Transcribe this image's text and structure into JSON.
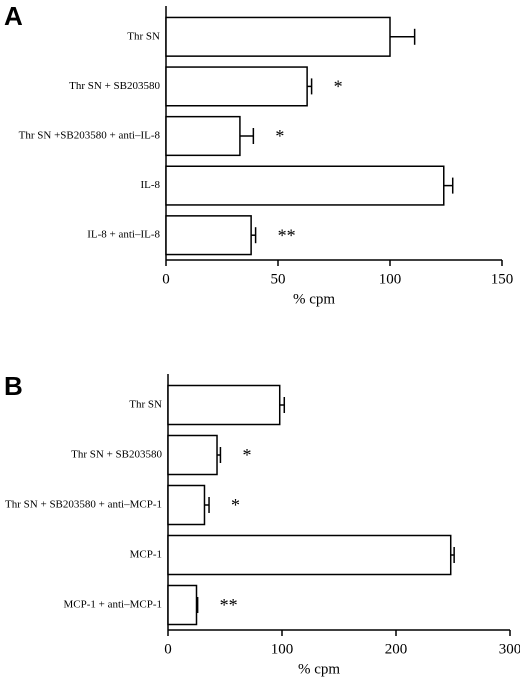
{
  "chart_data": [
    {
      "type": "bar",
      "orientation": "horizontal",
      "panel_label": "A",
      "categories": [
        "Thr SN",
        "Thr SN + SB203580",
        "Thr SN +SB203580 + anti–IL-8",
        "IL-8",
        "IL-8 + anti–IL-8"
      ],
      "values": [
        100,
        63,
        33,
        124,
        38
      ],
      "errors": [
        11,
        2,
        6,
        4,
        2
      ],
      "annotations": [
        null,
        "*",
        "*",
        null,
        "**"
      ],
      "color": "#ffffff",
      "xlabel": "% cpm",
      "xlim": [
        0,
        150
      ],
      "xticks": [
        0,
        50,
        100,
        150
      ]
    },
    {
      "type": "bar",
      "orientation": "horizontal",
      "panel_label": "B",
      "categories": [
        "Thr SN",
        "Thr SN + SB203580",
        "Thr SN + SB203580 + anti–MCP-1",
        "MCP-1",
        "MCP-1 + anti–MCP-1"
      ],
      "values": [
        98,
        43,
        32,
        248,
        25
      ],
      "errors": [
        4,
        3,
        4,
        3,
        1
      ],
      "annotations": [
        null,
        "*",
        "*",
        null,
        "**"
      ],
      "color": "#ffffff",
      "xlabel": "% cpm",
      "xlim": [
        0,
        300
      ],
      "xticks": [
        0,
        100,
        200,
        300
      ]
    }
  ]
}
